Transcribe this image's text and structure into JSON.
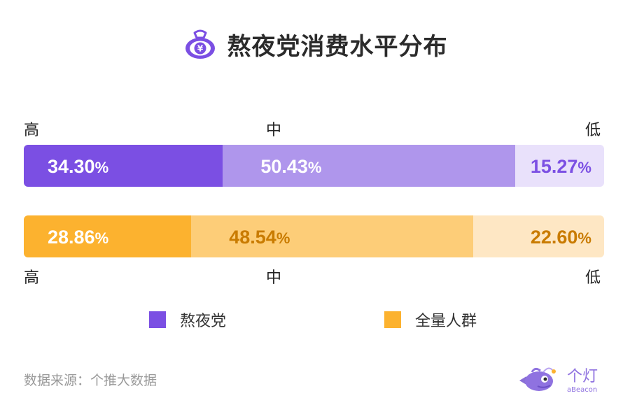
{
  "title": "熬夜党消费水平分布",
  "source": "数据来源：个推大数据",
  "logo": {
    "cn": "个灯",
    "en": "aBeacon"
  },
  "icon": "money-bag-icon",
  "colors": {
    "series1": [
      "#7b4fe3",
      "#af96ec",
      "#e9e1fb"
    ],
    "series1_text": [
      "#ffffff",
      "#ffffff",
      "#7b4fe3"
    ],
    "series2": [
      "#fcb22f",
      "#fdcd78",
      "#fee7c4"
    ],
    "series2_text": [
      "#ffffff",
      "#c97b00",
      "#c97b00"
    ]
  },
  "labels": {
    "top": [
      "高",
      "中",
      "低"
    ],
    "bottom": [
      "高",
      "中",
      "低"
    ]
  },
  "chart_data": {
    "type": "bar",
    "stacked": true,
    "orientation": "horizontal",
    "categories": [
      "高",
      "中",
      "低"
    ],
    "unit": "%",
    "series": [
      {
        "name": "熬夜党",
        "values": [
          34.3,
          50.43,
          15.27
        ]
      },
      {
        "name": "全量人群",
        "values": [
          28.86,
          48.54,
          22.6
        ]
      }
    ],
    "legend": "bottom-center"
  }
}
